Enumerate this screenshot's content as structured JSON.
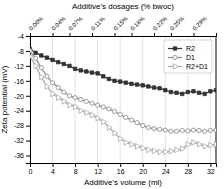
{
  "chart_data": {
    "type": "line",
    "x2label": "Additive's dosages (% bwoc)",
    "xlabel": "Additive's volume (ml)",
    "ylabel": "Zeta potential (mV)",
    "xlim": [
      0,
      33
    ],
    "ylim": [
      -38,
      -4
    ],
    "xticks": [
      0,
      4,
      8,
      12,
      16,
      20,
      24,
      28,
      32
    ],
    "yticks": [
      -36,
      -32,
      -28,
      -24,
      -20,
      -16,
      -12,
      -8,
      -4
    ],
    "x2lim": [
      0,
      33
    ],
    "x2ticks": [
      {
        "value": 0,
        "label": "0.00%"
      },
      {
        "value": 4,
        "label": "0.04%"
      },
      {
        "value": 7,
        "label": "0.07%"
      },
      {
        "value": 11,
        "label": "0.11%"
      },
      {
        "value": 15,
        "label": "0.15%"
      },
      {
        "value": 18,
        "label": "0.18%"
      },
      {
        "value": 22,
        "label": "0.22%"
      },
      {
        "value": 25,
        "label": "0.25%"
      },
      {
        "value": 29,
        "label": "0.29%"
      }
    ],
    "grid": "x",
    "legend": "upper right",
    "x": [
      0,
      1,
      2,
      3,
      4,
      5,
      6,
      7,
      8,
      9,
      10,
      11,
      12,
      13,
      14,
      15,
      16,
      17,
      18,
      19,
      20,
      21,
      22,
      23,
      24,
      25,
      26,
      27,
      28,
      29,
      30,
      31,
      32,
      33
    ],
    "series": [
      {
        "name": "R2",
        "color": "#333333",
        "marker": "square",
        "values": [
          -7.5,
          -8.5,
          -9.2,
          -9.8,
          -10.4,
          -11.0,
          -11.5,
          -12.0,
          -12.8,
          -13.2,
          -13.5,
          -13.8,
          -14.0,
          -14.8,
          -15.5,
          -16.0,
          -16.2,
          -16.5,
          -16.8,
          -17.0,
          -17.2,
          -17.5,
          -17.8,
          -18.0,
          -18.5,
          -19.0,
          -19.2,
          -19.5,
          -19.0,
          -18.8,
          -19.2,
          -19.5,
          -18.8,
          -18.5
        ]
      },
      {
        "name": "D1",
        "color": "#888888",
        "marker": "circle-open",
        "values": [
          -8.0,
          -10.0,
          -12.5,
          -14.8,
          -16.5,
          -17.8,
          -19.0,
          -20.0,
          -20.5,
          -21.0,
          -21.5,
          -22.0,
          -22.5,
          -23.0,
          -23.5,
          -24.2,
          -25.0,
          -25.8,
          -26.5,
          -27.2,
          -28.0,
          -28.5,
          -28.8,
          -29.0,
          -29.2,
          -29.5,
          -29.5,
          -29.3,
          -29.4,
          -29.2,
          -29.3,
          -29.5,
          -29.3,
          -29.2
        ]
      },
      {
        "name": "R2+D1",
        "color": "#aaaaaa",
        "marker": "triangle-right-open",
        "values": [
          -9.5,
          -12.0,
          -15.0,
          -17.5,
          -19.5,
          -20.5,
          -21.5,
          -22.5,
          -23.0,
          -24.0,
          -24.5,
          -25.2,
          -26.0,
          -27.0,
          -28.5,
          -30.0,
          -31.5,
          -32.5,
          -33.0,
          -33.5,
          -34.0,
          -34.5,
          -34.8,
          -35.0,
          -35.0,
          -34.8,
          -34.5,
          -34.2,
          -33.0,
          -32.5,
          -33.0,
          -33.5,
          -33.2,
          -33.0
        ]
      }
    ]
  }
}
